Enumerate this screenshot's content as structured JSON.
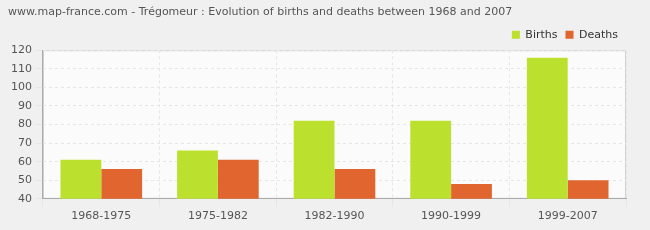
{
  "chart_data": {
    "type": "bar",
    "title": "www.map-france.com - Trégomeur : Evolution of births and deaths between 1968 and 2007",
    "categories": [
      "1968-1975",
      "1975-1982",
      "1982-1990",
      "1990-1999",
      "1999-2007"
    ],
    "series": [
      {
        "name": "Births",
        "color": "#bbe12e",
        "values": [
          61,
          66,
          82,
          82,
          116
        ]
      },
      {
        "name": "Deaths",
        "color": "#e0652f",
        "values": [
          56,
          61,
          56,
          48,
          50
        ]
      }
    ],
    "ylim": [
      40,
      120
    ],
    "yticks": [
      40,
      50,
      60,
      70,
      80,
      90,
      100,
      110,
      120
    ],
    "grid": true,
    "legend": "top right"
  }
}
